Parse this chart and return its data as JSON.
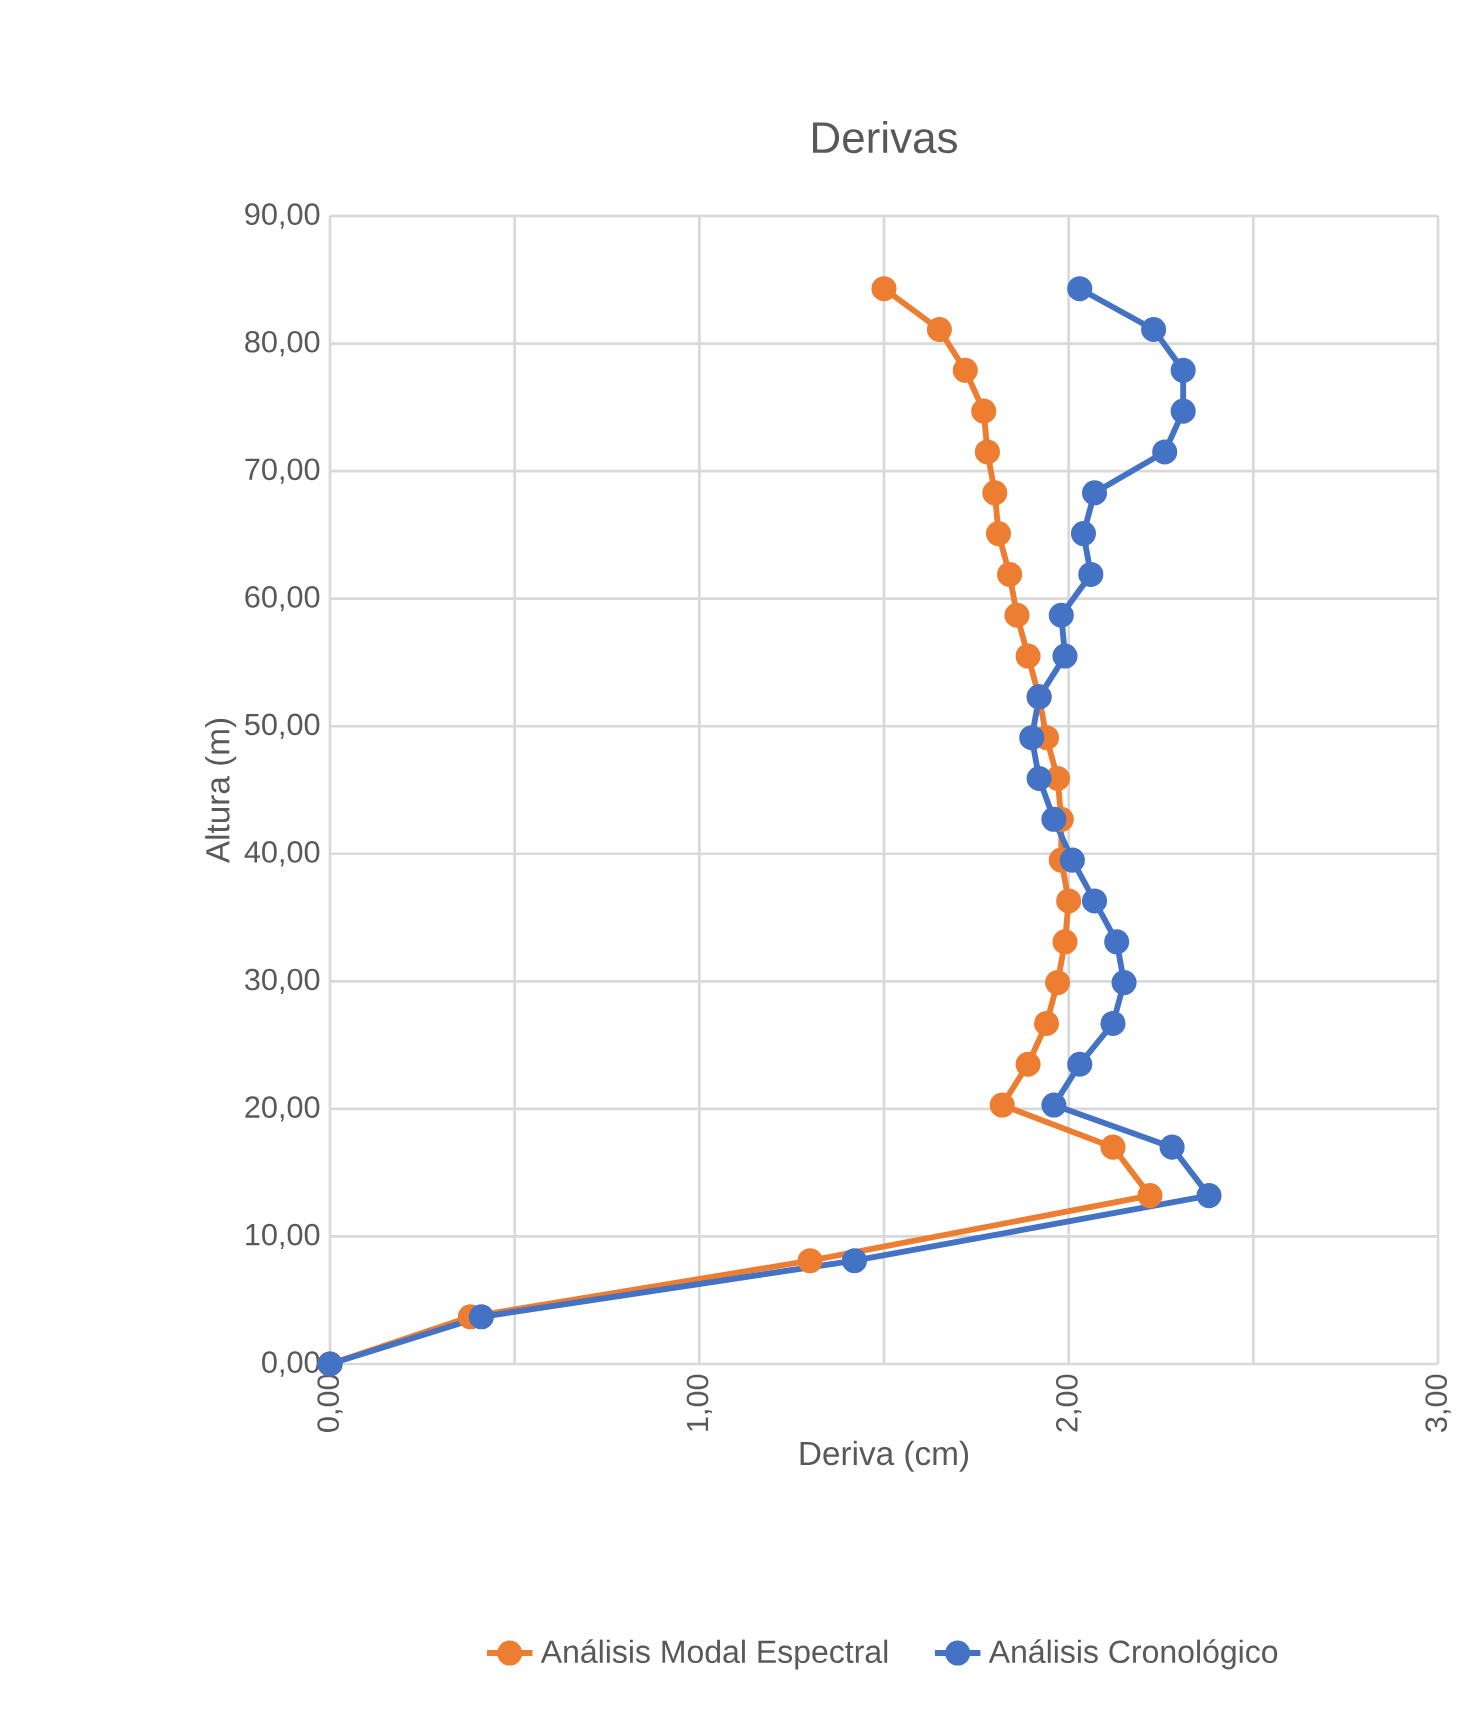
{
  "chart_data": {
    "type": "line",
    "title": "Derivas",
    "xlabel": "Deriva (cm)",
    "ylabel": "Altura (m)",
    "xlim": [
      0,
      3
    ],
    "ylim": [
      0,
      90
    ],
    "xticks": [
      {
        "value": 0,
        "label": "0,00"
      },
      {
        "value": 0.5,
        "label": null
      },
      {
        "value": 1,
        "label": "1,00"
      },
      {
        "value": 1.5,
        "label": null
      },
      {
        "value": 2,
        "label": "2,00"
      },
      {
        "value": 2.5,
        "label": null
      },
      {
        "value": 3,
        "label": "3,00"
      }
    ],
    "yticks": [
      {
        "value": 0,
        "label": "0,00"
      },
      {
        "value": 10,
        "label": "10,00"
      },
      {
        "value": 20,
        "label": "20,00"
      },
      {
        "value": 30,
        "label": "30,00"
      },
      {
        "value": 40,
        "label": "40,00"
      },
      {
        "value": 50,
        "label": "50,00"
      },
      {
        "value": 60,
        "label": "60,00"
      },
      {
        "value": 70,
        "label": "70,00"
      },
      {
        "value": 80,
        "label": "80,00"
      },
      {
        "value": 90,
        "label": "90,00"
      }
    ],
    "grid": true,
    "legend": "bottom",
    "marker": "circle",
    "line_style": "solid",
    "series": [
      {
        "name": "Análisis Modal Espectral",
        "color": "#ed7d31",
        "x": [
          0,
          0.38,
          1.3,
          2.22,
          2.12,
          1.82,
          1.89,
          1.94,
          1.97,
          1.99,
          2.0,
          1.98,
          1.98,
          1.97,
          1.94,
          1.92,
          1.89,
          1.86,
          1.84,
          1.81,
          1.8,
          1.78,
          1.77,
          1.72,
          1.65,
          1.5
        ],
        "values": [
          0,
          3.7,
          8.1,
          13.2,
          17.0,
          20.3,
          23.5,
          26.7,
          29.9,
          33.1,
          36.3,
          39.5,
          42.7,
          45.9,
          49.1,
          52.3,
          55.5,
          58.7,
          61.9,
          65.1,
          68.3,
          71.5,
          74.7,
          77.9,
          81.1,
          84.3
        ]
      },
      {
        "name": "Análisis Cronológico",
        "color": "#4472c4",
        "x": [
          0,
          0.41,
          1.42,
          2.38,
          2.28,
          1.96,
          2.03,
          2.12,
          2.15,
          2.13,
          2.07,
          2.01,
          1.96,
          1.92,
          1.9,
          1.92,
          1.99,
          1.98,
          2.06,
          2.04,
          2.07,
          2.26,
          2.31,
          2.31,
          2.23,
          2.03
        ],
        "values": [
          0,
          3.7,
          8.1,
          13.2,
          17.0,
          20.3,
          23.5,
          26.7,
          29.9,
          33.1,
          36.3,
          39.5,
          42.7,
          45.9,
          49.1,
          52.3,
          55.5,
          58.7,
          61.9,
          65.1,
          68.3,
          71.5,
          74.7,
          77.9,
          81.1,
          84.3
        ]
      }
    ]
  }
}
